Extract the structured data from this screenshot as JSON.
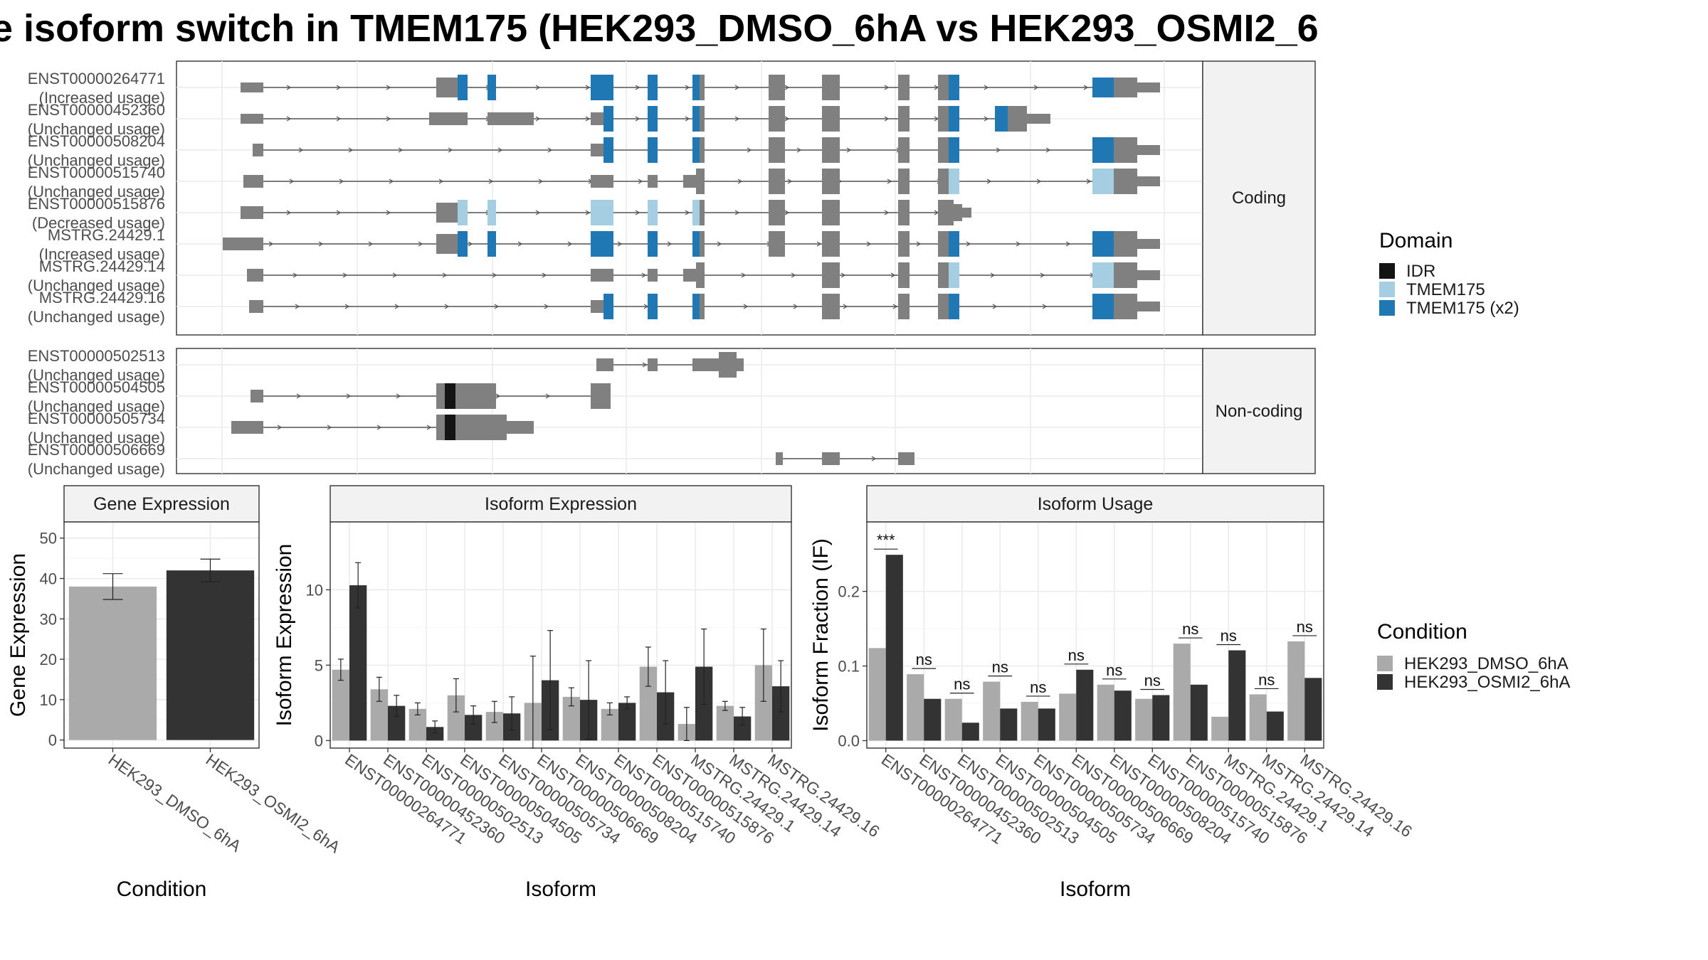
{
  "title": "e isoform switch in TMEM175 (HEK293_DMSO_6hA vs HEK293_OSMI2_6",
  "colors": {
    "intron": "#555555",
    "exon": "#808080",
    "idr": "#141414",
    "tmem175": "#a6cee3",
    "tmem175x2": "#1f78b4",
    "dmso": "#aaaaaa",
    "osmi2": "#333333",
    "strip_bg": "#f2f2f2",
    "grid": "#ebebeb"
  },
  "strips": {
    "coding": "Coding",
    "noncoding": "Non-coding"
  },
  "isoform_rows": {
    "coding": [
      {
        "id": "ENST00000264771",
        "status": "(Increased usage)"
      },
      {
        "id": "ENST00000452360",
        "status": "(Unchanged usage)"
      },
      {
        "id": "ENST00000508204",
        "status": "(Unchanged usage)"
      },
      {
        "id": "ENST00000515740",
        "status": "(Unchanged usage)"
      },
      {
        "id": "ENST00000515876",
        "status": "(Decreased usage)"
      },
      {
        "id": "MSTRG.24429.1",
        "status": "(Increased usage)"
      },
      {
        "id": "MSTRG.24429.14",
        "status": "(Unchanged usage)"
      },
      {
        "id": "MSTRG.24429.16",
        "status": "(Unchanged usage)"
      }
    ],
    "noncoding": [
      {
        "id": "ENST00000502513",
        "status": "(Unchanged usage)"
      },
      {
        "id": "ENST00000504505",
        "status": "(Unchanged usage)"
      },
      {
        "id": "ENST00000505734",
        "status": "(Unchanged usage)"
      },
      {
        "id": "ENST00000506669",
        "status": "(Unchanged usage)"
      }
    ]
  },
  "domain_legend": {
    "title": "Domain",
    "items": [
      {
        "label": "IDR",
        "color": "#141414"
      },
      {
        "label": "TMEM175",
        "color": "#a6cee3"
      },
      {
        "label": "TMEM175 (x2)",
        "color": "#1f78b4"
      }
    ]
  },
  "condition_legend": {
    "title": "Condition",
    "items": [
      {
        "label": "HEK293_DMSO_6hA",
        "color": "#aaaaaa"
      },
      {
        "label": "HEK293_OSMI2_6hA",
        "color": "#333333"
      }
    ]
  },
  "chart_data": [
    {
      "type": "bar",
      "title": "Gene Expression",
      "xlabel": "Condition",
      "ylabel": "Gene Expression",
      "categories": [
        "HEK293_DMSO_6hA",
        "HEK293_OSMI2_6hA"
      ],
      "values": [
        38,
        42
      ],
      "errors": [
        3.2,
        2.8
      ],
      "ylim": [
        -2,
        54
      ],
      "yticks": [
        0,
        10,
        20,
        30,
        40,
        50
      ],
      "grid": true
    },
    {
      "type": "bar",
      "title": "Isoform Expression",
      "xlabel": "Isoform",
      "ylabel": "Isoform Expression",
      "categories": [
        "ENST00000264771",
        "ENST00000452360",
        "ENST00000502513",
        "ENST00000504505",
        "ENST00000505734",
        "ENST00000506669",
        "ENST00000508204",
        "ENST00000515740",
        "ENST00000515876",
        "MSTRG.24429.1",
        "MSTRG.24429.14",
        "MSTRG.24429.16"
      ],
      "series": [
        {
          "name": "HEK293_DMSO_6hA",
          "values": [
            4.7,
            3.4,
            2.1,
            3.0,
            1.9,
            2.5,
            2.9,
            2.1,
            4.9,
            1.1,
            2.3,
            5.0
          ],
          "errors": [
            0.7,
            0.8,
            0.4,
            1.1,
            0.7,
            3.1,
            0.6,
            0.4,
            1.3,
            1.1,
            0.3,
            2.4
          ]
        },
        {
          "name": "HEK293_OSMI2_6hA",
          "values": [
            10.3,
            2.3,
            0.9,
            1.7,
            1.8,
            4.0,
            2.7,
            2.5,
            3.2,
            4.9,
            1.6,
            3.6
          ],
          "errors": [
            1.5,
            0.7,
            0.4,
            0.6,
            1.1,
            3.3,
            2.6,
            0.4,
            2.1,
            2.5,
            0.6,
            1.7
          ]
        }
      ],
      "ylim": [
        -0.5,
        14.5
      ],
      "yticks": [
        0,
        5,
        10
      ],
      "grid": true
    },
    {
      "type": "bar",
      "title": "Isoform Usage",
      "xlabel": "Isoform",
      "ylabel": "Isoform Fraction (IF)",
      "categories": [
        "ENST00000264771",
        "ENST00000452360",
        "ENST00000502513",
        "ENST00000504505",
        "ENST00000505734",
        "ENST00000506669",
        "ENST00000508204",
        "ENST00000515740",
        "ENST00000515876",
        "MSTRG.24429.1",
        "MSTRG.24429.14",
        "MSTRG.24429.16"
      ],
      "series": [
        {
          "name": "HEK293_DMSO_6hA",
          "values": [
            0.124,
            0.089,
            0.056,
            0.079,
            0.052,
            0.063,
            0.075,
            0.056,
            0.13,
            0.032,
            0.062,
            0.133
          ]
        },
        {
          "name": "HEK293_OSMI2_6hA",
          "values": [
            0.249,
            0.056,
            0.024,
            0.043,
            0.043,
            0.095,
            0.067,
            0.061,
            0.075,
            0.121,
            0.039,
            0.084
          ]
        }
      ],
      "significance": [
        "***",
        "ns",
        "ns",
        "ns",
        "ns",
        "ns",
        "ns",
        "ns",
        "ns",
        "ns",
        "ns",
        "ns"
      ],
      "ylim": [
        -0.01,
        0.293
      ],
      "yticks": [
        0.0,
        0.1,
        0.2
      ],
      "ytick_labels": [
        "0.0",
        "0.1",
        "0.2"
      ],
      "grid": true
    }
  ]
}
